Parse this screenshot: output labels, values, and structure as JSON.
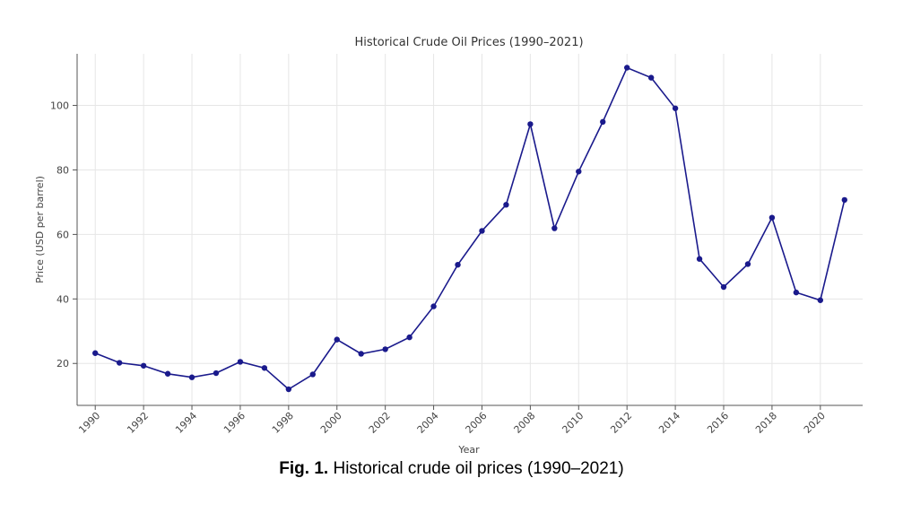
{
  "chart_data": {
    "type": "line",
    "title": "Historical Crude Oil Prices (1990–2021)",
    "xlabel": "Year",
    "ylabel": "Price (USD per barrel)",
    "xlim": [
      1989.25,
      2021.75
    ],
    "ylim": [
      7,
      116
    ],
    "grid": true,
    "line_color": "#1a1a8c",
    "yticks": [
      20,
      40,
      60,
      80,
      100
    ],
    "xticks": [
      "1990",
      "1992",
      "1994",
      "1996",
      "1998",
      "2000",
      "2002",
      "2004",
      "2006",
      "2008",
      "2010",
      "2012",
      "2014",
      "2016",
      "2018",
      "2020"
    ],
    "series": [
      {
        "x": [
          1990,
          1991,
          1992,
          1993,
          1994,
          1995,
          1996,
          1997,
          1998,
          1999,
          2000,
          2001,
          2002,
          2003,
          2004,
          2005,
          2006,
          2007,
          2008,
          2009,
          2010,
          2011,
          2012,
          2013,
          2014,
          2015,
          2016,
          2017,
          2018,
          2019,
          2020,
          2021
        ],
        "values": [
          23.2,
          20.2,
          19.3,
          16.8,
          15.7,
          17.0,
          20.5,
          18.6,
          12.0,
          16.6,
          27.4,
          23.0,
          24.4,
          28.1,
          37.7,
          50.6,
          61.1,
          69.2,
          94.2,
          61.9,
          79.5,
          94.9,
          111.7,
          108.6,
          99.1,
          52.4,
          43.7,
          50.8,
          65.2,
          42.0,
          39.6,
          70.7
        ]
      }
    ]
  },
  "caption": {
    "label": "Fig. 1.",
    "text": " Historical crude oil prices (1990–2021)"
  }
}
